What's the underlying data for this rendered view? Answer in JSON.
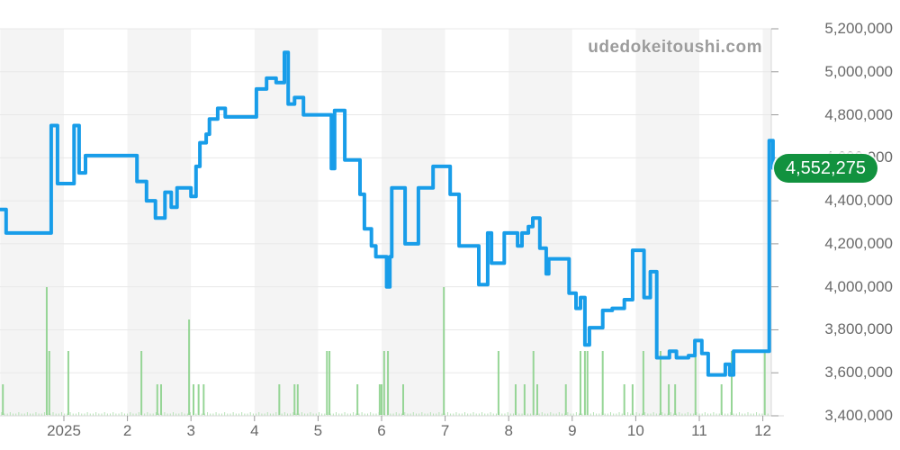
{
  "watermark": "udedokeitoushi.com",
  "current_price_label": "4,552,275",
  "colors": {
    "line": "#189de9",
    "volume": "#96d596",
    "volume_faint": "#b5e2b5",
    "badge_bg": "#12923f",
    "badge_text": "#ffffff",
    "stripe": "#f4f4f4",
    "grid": "#e8e8e8",
    "axis_line": "#d8d8d8",
    "tick": "#9a9a9a",
    "axis_text": "#696969",
    "watermark_text": "#9c9c9c"
  },
  "chart_data": {
    "type": "line",
    "title": "",
    "watermark": "udedokeitoushi.com",
    "current_value": 4552275,
    "grid": true,
    "stripes": "alternating monthly vertical bands",
    "x_axis": {
      "tick_labels": [
        "2025",
        "2",
        "3",
        "4",
        "5",
        "6",
        "7",
        "8",
        "9",
        "10",
        "11",
        "12"
      ],
      "range_months": [
        0,
        12.16
      ]
    },
    "y_axis": {
      "min": 3400000,
      "max": 5200000,
      "step": 200000,
      "tick_labels": [
        "5,200,000",
        "5,000,000",
        "4,800,000",
        "4,600,000",
        "4,400,000",
        "4,200,000",
        "4,000,000",
        "3,800,000",
        "3,600,000",
        "3,400,000"
      ],
      "side": "right"
    },
    "price_series": {
      "name": "price",
      "step_mode": "after",
      "points": [
        [
          0.0,
          4360000
        ],
        [
          0.09,
          4250000
        ],
        [
          0.8,
          4750000
        ],
        [
          0.9,
          4480000
        ],
        [
          1.16,
          4750000
        ],
        [
          1.24,
          4530000
        ],
        [
          1.34,
          4610000
        ],
        [
          2.15,
          4490000
        ],
        [
          2.3,
          4400000
        ],
        [
          2.44,
          4320000
        ],
        [
          2.59,
          4440000
        ],
        [
          2.69,
          4370000
        ],
        [
          2.78,
          4460000
        ],
        [
          3.0,
          4420000
        ],
        [
          3.08,
          4560000
        ],
        [
          3.14,
          4670000
        ],
        [
          3.24,
          4710000
        ],
        [
          3.29,
          4780000
        ],
        [
          3.42,
          4830000
        ],
        [
          3.54,
          4790000
        ],
        [
          4.03,
          4920000
        ],
        [
          4.19,
          4970000
        ],
        [
          4.34,
          4950000
        ],
        [
          4.47,
          5090000
        ],
        [
          4.53,
          4850000
        ],
        [
          4.63,
          4880000
        ],
        [
          4.77,
          4800000
        ],
        [
          5.21,
          4550000
        ],
        [
          5.26,
          4820000
        ],
        [
          5.42,
          4590000
        ],
        [
          5.66,
          4430000
        ],
        [
          5.73,
          4270000
        ],
        [
          5.84,
          4190000
        ],
        [
          5.91,
          4140000
        ],
        [
          6.08,
          4000000
        ],
        [
          6.13,
          4140000
        ],
        [
          6.16,
          4460000
        ],
        [
          6.37,
          4200000
        ],
        [
          6.58,
          4460000
        ],
        [
          6.81,
          4560000
        ],
        [
          7.08,
          4430000
        ],
        [
          7.22,
          4190000
        ],
        [
          7.53,
          4010000
        ],
        [
          7.67,
          4250000
        ],
        [
          7.73,
          4110000
        ],
        [
          7.93,
          4250000
        ],
        [
          8.14,
          4190000
        ],
        [
          8.21,
          4250000
        ],
        [
          8.31,
          4280000
        ],
        [
          8.38,
          4320000
        ],
        [
          8.49,
          4180000
        ],
        [
          8.59,
          4060000
        ],
        [
          8.63,
          4130000
        ],
        [
          8.95,
          3970000
        ],
        [
          9.06,
          3900000
        ],
        [
          9.13,
          3950000
        ],
        [
          9.2,
          3730000
        ],
        [
          9.27,
          3810000
        ],
        [
          9.48,
          3890000
        ],
        [
          9.63,
          3900000
        ],
        [
          9.82,
          3940000
        ],
        [
          9.95,
          4170000
        ],
        [
          10.13,
          3950000
        ],
        [
          10.23,
          4070000
        ],
        [
          10.33,
          3670000
        ],
        [
          10.53,
          3700000
        ],
        [
          10.64,
          3670000
        ],
        [
          10.83,
          3680000
        ],
        [
          10.93,
          3750000
        ],
        [
          11.04,
          3690000
        ],
        [
          11.14,
          3590000
        ],
        [
          11.41,
          3640000
        ],
        [
          11.48,
          3590000
        ],
        [
          11.54,
          3700000
        ],
        [
          12.1,
          4680000
        ],
        [
          12.16,
          4552275
        ]
      ]
    },
    "volume_bars": {
      "name": "volume",
      "height_unit": "relative px (no value axis shown)",
      "points": [
        [
          0.04,
          34
        ],
        [
          0.73,
          142
        ],
        [
          0.77,
          71
        ],
        [
          1.07,
          71
        ],
        [
          2.22,
          71
        ],
        [
          2.47,
          34
        ],
        [
          2.53,
          34
        ],
        [
          2.97,
          106
        ],
        [
          3.04,
          34
        ],
        [
          3.12,
          34
        ],
        [
          3.2,
          34
        ],
        [
          4.39,
          34
        ],
        [
          4.63,
          34
        ],
        [
          4.68,
          34
        ],
        [
          5.14,
          71
        ],
        [
          5.18,
          71
        ],
        [
          5.62,
          34
        ],
        [
          5.97,
          34
        ],
        [
          6.0,
          34
        ],
        [
          6.04,
          71
        ],
        [
          6.1,
          71
        ],
        [
          6.34,
          34
        ],
        [
          6.98,
          142
        ],
        [
          7.84,
          71
        ],
        [
          8.11,
          34
        ],
        [
          8.25,
          34
        ],
        [
          8.39,
          71
        ],
        [
          8.45,
          34
        ],
        [
          8.9,
          34
        ],
        [
          9.13,
          71
        ],
        [
          9.2,
          71
        ],
        [
          9.24,
          71
        ],
        [
          9.48,
          71
        ],
        [
          9.82,
          34
        ],
        [
          9.95,
          34
        ],
        [
          10.12,
          71
        ],
        [
          10.39,
          71
        ],
        [
          10.52,
          34
        ],
        [
          10.62,
          34
        ],
        [
          10.94,
          71
        ],
        [
          11.35,
          34
        ],
        [
          11.51,
          71
        ],
        [
          12.03,
          71
        ]
      ]
    }
  }
}
